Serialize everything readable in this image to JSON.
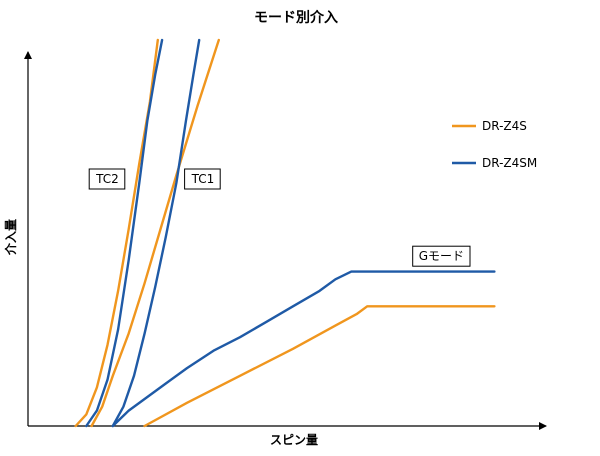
{
  "chart_data": {
    "type": "line",
    "title": "モード別介入",
    "xlabel": "スピン量",
    "ylabel": "介入量",
    "xlim": [
      0,
      100
    ],
    "ylim": [
      0,
      100
    ],
    "grid": false,
    "ticks": false,
    "legend_position": "top-right",
    "colors": {
      "DR-Z4S": "#F0961E",
      "DR-Z4SM": "#1F5AA6"
    },
    "legend": [
      {
        "name": "DR-Z4S"
      },
      {
        "name": "DR-Z4SM"
      }
    ],
    "series": [
      {
        "name": "DR-Z4S",
        "group": "TC2",
        "points": [
          [
            9,
            0
          ],
          [
            11,
            3
          ],
          [
            13,
            10
          ],
          [
            15,
            21
          ],
          [
            17,
            35
          ],
          [
            19,
            51
          ],
          [
            21,
            68
          ],
          [
            23,
            84
          ],
          [
            24.5,
            100
          ]
        ]
      },
      {
        "name": "DR-Z4SM",
        "group": "TC2",
        "points": [
          [
            11,
            0
          ],
          [
            13,
            4
          ],
          [
            15,
            12
          ],
          [
            17,
            25
          ],
          [
            19,
            43
          ],
          [
            21,
            63
          ],
          [
            22.5,
            79
          ],
          [
            24,
            91
          ],
          [
            25.3,
            100
          ]
        ]
      },
      {
        "name": "DR-Z4S",
        "group": "TC1",
        "points": [
          [
            12,
            0
          ],
          [
            14,
            5
          ],
          [
            16,
            13
          ],
          [
            19,
            24
          ],
          [
            22,
            37
          ],
          [
            25,
            51
          ],
          [
            28,
            65
          ],
          [
            32,
            83
          ],
          [
            36,
            100
          ]
        ]
      },
      {
        "name": "DR-Z4SM",
        "group": "TC1",
        "points": [
          [
            16,
            0
          ],
          [
            18,
            5
          ],
          [
            20,
            13
          ],
          [
            22,
            24
          ],
          [
            24,
            36
          ],
          [
            26,
            49
          ],
          [
            28,
            63
          ],
          [
            29.8,
            79
          ],
          [
            31.2,
            91
          ],
          [
            32.3,
            100
          ]
        ]
      },
      {
        "name": "DR-Z4S",
        "group": "Gモード",
        "points": [
          [
            22,
            0
          ],
          [
            30,
            6
          ],
          [
            40,
            13
          ],
          [
            50,
            20
          ],
          [
            58,
            26
          ],
          [
            62,
            29
          ],
          [
            64,
            31
          ],
          [
            74,
            31
          ],
          [
            88,
            31
          ]
        ]
      },
      {
        "name": "DR-Z4SM",
        "group": "Gモード",
        "points": [
          [
            16,
            0
          ],
          [
            19,
            4
          ],
          [
            22,
            7
          ],
          [
            26,
            11
          ],
          [
            30,
            15
          ],
          [
            35,
            19.5
          ],
          [
            40,
            23
          ],
          [
            45,
            27
          ],
          [
            50,
            31
          ],
          [
            55,
            35
          ],
          [
            58,
            38
          ],
          [
            61,
            40
          ],
          [
            64,
            40
          ],
          [
            74,
            40
          ],
          [
            88,
            40
          ]
        ]
      }
    ],
    "annotations": [
      {
        "text": "TC2",
        "x": 15,
        "y": 64
      },
      {
        "text": "TC1",
        "x": 33,
        "y": 64
      },
      {
        "text": "Gモード",
        "x": 78,
        "y": 44
      }
    ]
  }
}
